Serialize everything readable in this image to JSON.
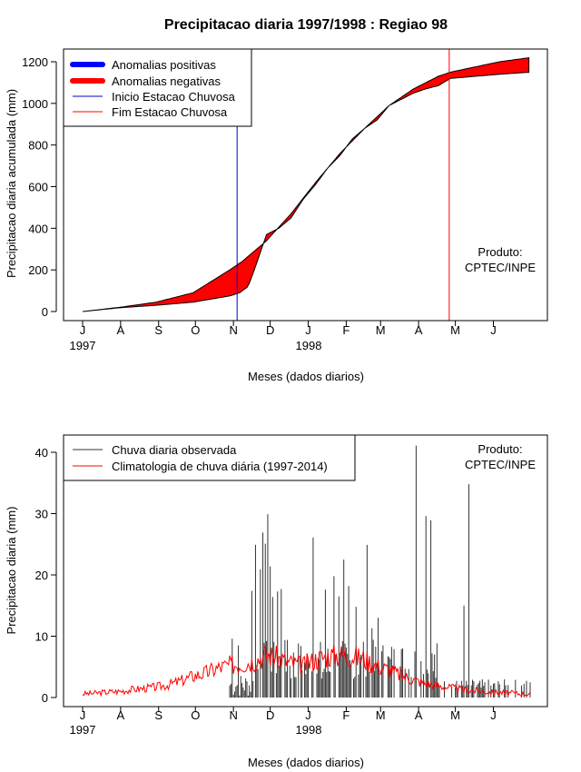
{
  "colors": {
    "positive": "#0000ff",
    "negative": "#ff0000",
    "start": "#0000cc",
    "end": "#ff0000",
    "bars": "#333333",
    "clim": "#ff0000"
  },
  "chart_data": [
    {
      "type": "area",
      "title": "Precipitacao diaria 1997/1998 : Regiao 98",
      "xlabel": "Meses (dados diarios)",
      "ylabel": "Precipitacao diaria acumulada (mm)",
      "x_ticks": [
        "J",
        "A",
        "S",
        "O",
        "N",
        "D",
        "J",
        "F",
        "M",
        "A",
        "M",
        "J"
      ],
      "year_labels": [
        "1997",
        "1998"
      ],
      "ylim": [
        0,
        1250
      ],
      "y_ticks": [
        0,
        200,
        400,
        600,
        800,
        1000,
        1200
      ],
      "day_range": [
        0,
        365
      ],
      "legend": [
        "Anomalias positivas",
        "Anomalias negativas",
        "Inicio Estacao Chuvosa",
        "Fim Estacao Chuvosa"
      ],
      "annotation": [
        "Produto:",
        "CPTEC/INPE"
      ],
      "start_season_day": 126,
      "end_season_day": 299,
      "series": [
        {
          "name": "Climatologia acumulada",
          "x": [
            0,
            30,
            60,
            90,
            120,
            130,
            150,
            170,
            190,
            210,
            230,
            250,
            270,
            290,
            300,
            320,
            340,
            365
          ],
          "values": [
            0,
            20,
            45,
            90,
            200,
            240,
            340,
            470,
            620,
            760,
            880,
            990,
            1070,
            1130,
            1150,
            1175,
            1200,
            1220
          ]
        },
        {
          "name": "Observada acumulada",
          "x": [
            0,
            30,
            60,
            90,
            120,
            128,
            135,
            140,
            150,
            160,
            170,
            180,
            190,
            200,
            210,
            220,
            230,
            240,
            250,
            260,
            270,
            280,
            290,
            300,
            320,
            340,
            365
          ],
          "values": [
            0,
            18,
            30,
            45,
            75,
            90,
            120,
            200,
            370,
            400,
            450,
            540,
            610,
            690,
            750,
            830,
            880,
            920,
            990,
            1020,
            1050,
            1070,
            1085,
            1120,
            1130,
            1140,
            1150
          ]
        }
      ]
    },
    {
      "type": "bar",
      "title": "",
      "xlabel": "Meses (dados diarios)",
      "ylabel": "Precipitacao diaria (mm)",
      "x_ticks": [
        "J",
        "A",
        "S",
        "O",
        "N",
        "D",
        "J",
        "F",
        "M",
        "A",
        "M",
        "J"
      ],
      "year_labels": [
        "1997",
        "1998"
      ],
      "ylim": [
        0,
        43
      ],
      "y_ticks": [
        0,
        10,
        20,
        30,
        40
      ],
      "day_range": [
        0,
        365
      ],
      "legend": [
        "Chuva diaria observada",
        "Climatologia de chuva diária (1997-2014)"
      ],
      "annotation": [
        "Produto:",
        "CPTEC/INPE"
      ],
      "series": [
        {
          "name": "Chuva diaria observada (picos)",
          "x": [
            122,
            127,
            138,
            141,
            145,
            147,
            149,
            151,
            153,
            155,
            159,
            162,
            167,
            188,
            198,
            205,
            209,
            213,
            217,
            223,
            232,
            236,
            241,
            272,
            280,
            284,
            311,
            315,
            317
          ],
          "values": [
            9.6,
            8.5,
            17.4,
            24.9,
            20.9,
            26.9,
            25.1,
            29.9,
            21.4,
            16.4,
            17.3,
            17.7,
            9.4,
            26.1,
            17.6,
            19.8,
            16.5,
            22.5,
            18.2,
            14.8,
            24.9,
            11.3,
            13.0,
            41.1,
            29.6,
            28.9,
            15.0,
            34.8,
            2.0
          ]
        },
        {
          "name": "Climatologia de chuva diária (1997-2014)",
          "x": [
            0,
            10,
            20,
            30,
            40,
            50,
            60,
            70,
            80,
            90,
            100,
            110,
            120,
            130,
            140,
            150,
            160,
            170,
            180,
            190,
            200,
            210,
            220,
            230,
            240,
            250,
            260,
            270,
            280,
            290,
            300,
            310,
            320,
            330,
            340,
            350,
            360,
            365
          ],
          "values": [
            0.6,
            0.7,
            0.9,
            1.0,
            1.3,
            1.5,
            1.7,
            2.1,
            2.7,
            3.5,
            4.0,
            4.8,
            5.3,
            5.5,
            6.0,
            7.0,
            6.4,
            5.6,
            5.2,
            6.2,
            6.8,
            7.0,
            6.8,
            6.3,
            5.2,
            4.5,
            3.6,
            2.9,
            2.3,
            1.9,
            1.6,
            1.3,
            1.1,
            0.9,
            0.8,
            0.7,
            0.6,
            0.6
          ]
        }
      ]
    }
  ]
}
